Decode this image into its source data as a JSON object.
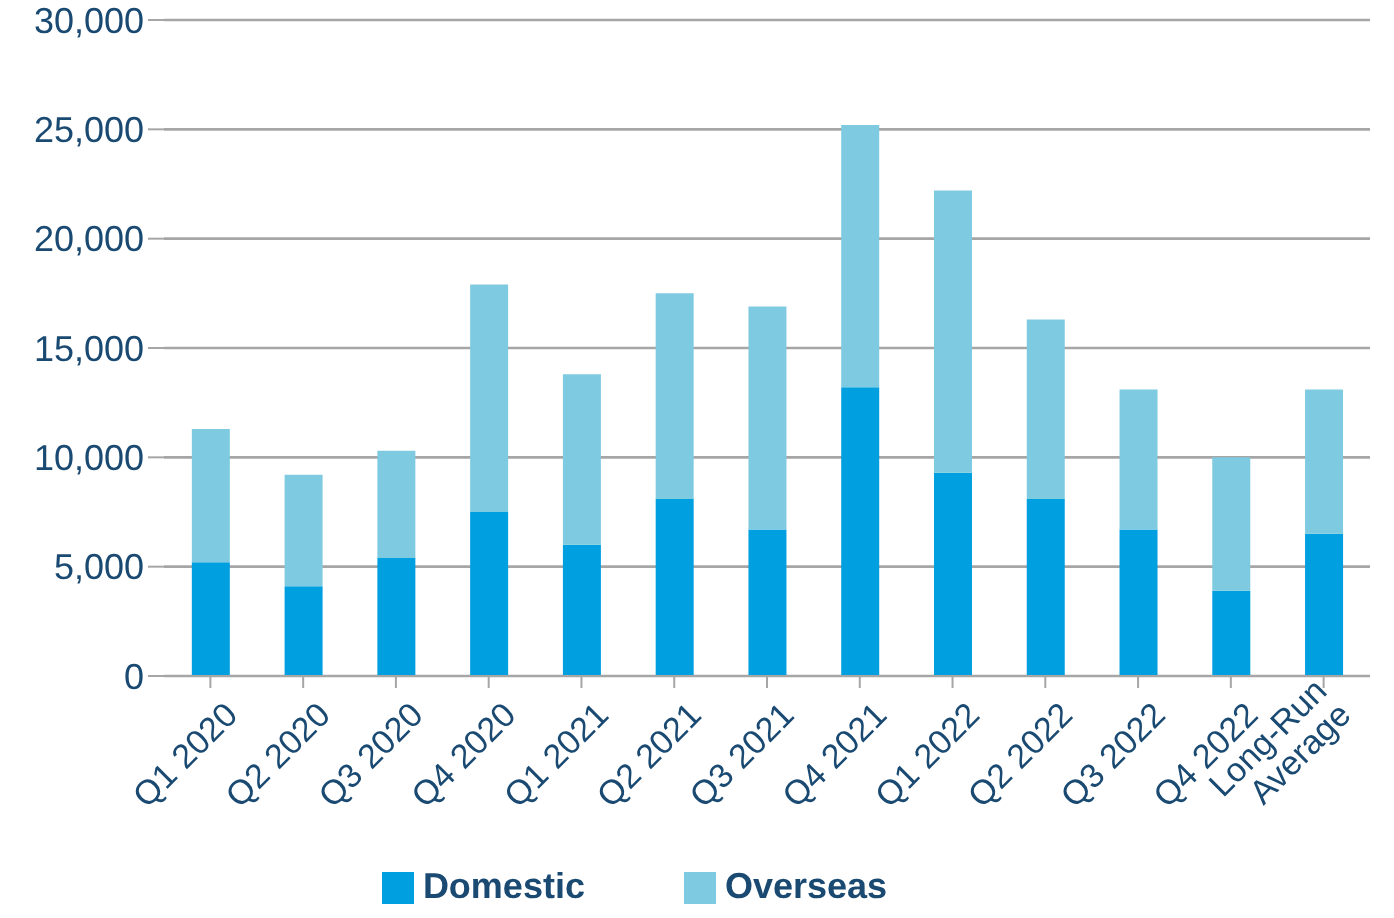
{
  "chart_data": {
    "type": "bar",
    "stacked": true,
    "categories": [
      "Q1 2020",
      "Q2 2020",
      "Q3 2020",
      "Q4 2020",
      "Q1 2021",
      "Q2 2021",
      "Q3 2021",
      "Q4 2021",
      "Q1 2022",
      "Q2 2022",
      "Q3 2022",
      "Q4 2022",
      "Long-Run Average"
    ],
    "series": [
      {
        "name": "Domestic",
        "color": "#009fe0",
        "values": [
          5200,
          4100,
          5400,
          7500,
          6000,
          8100,
          6700,
          13200,
          9300,
          8100,
          6700,
          3900,
          6500
        ]
      },
      {
        "name": "Overseas",
        "color": "#7ecbe1",
        "values": [
          6100,
          5100,
          4900,
          10400,
          7800,
          9400,
          10200,
          12000,
          12900,
          8200,
          6400,
          6100,
          6600
        ]
      }
    ],
    "ylim": [
      0,
      30000
    ],
    "yticks": [
      {
        "value": 0,
        "label": "0"
      },
      {
        "value": 5000,
        "label": "5,000"
      },
      {
        "value": 10000,
        "label": "10,000"
      },
      {
        "value": 15000,
        "label": "15,000"
      },
      {
        "value": 20000,
        "label": "20,000"
      },
      {
        "value": 25000,
        "label": "25,000"
      },
      {
        "value": 30000,
        "label": "30,000"
      }
    ],
    "grid": "y",
    "legend": "bottom"
  }
}
